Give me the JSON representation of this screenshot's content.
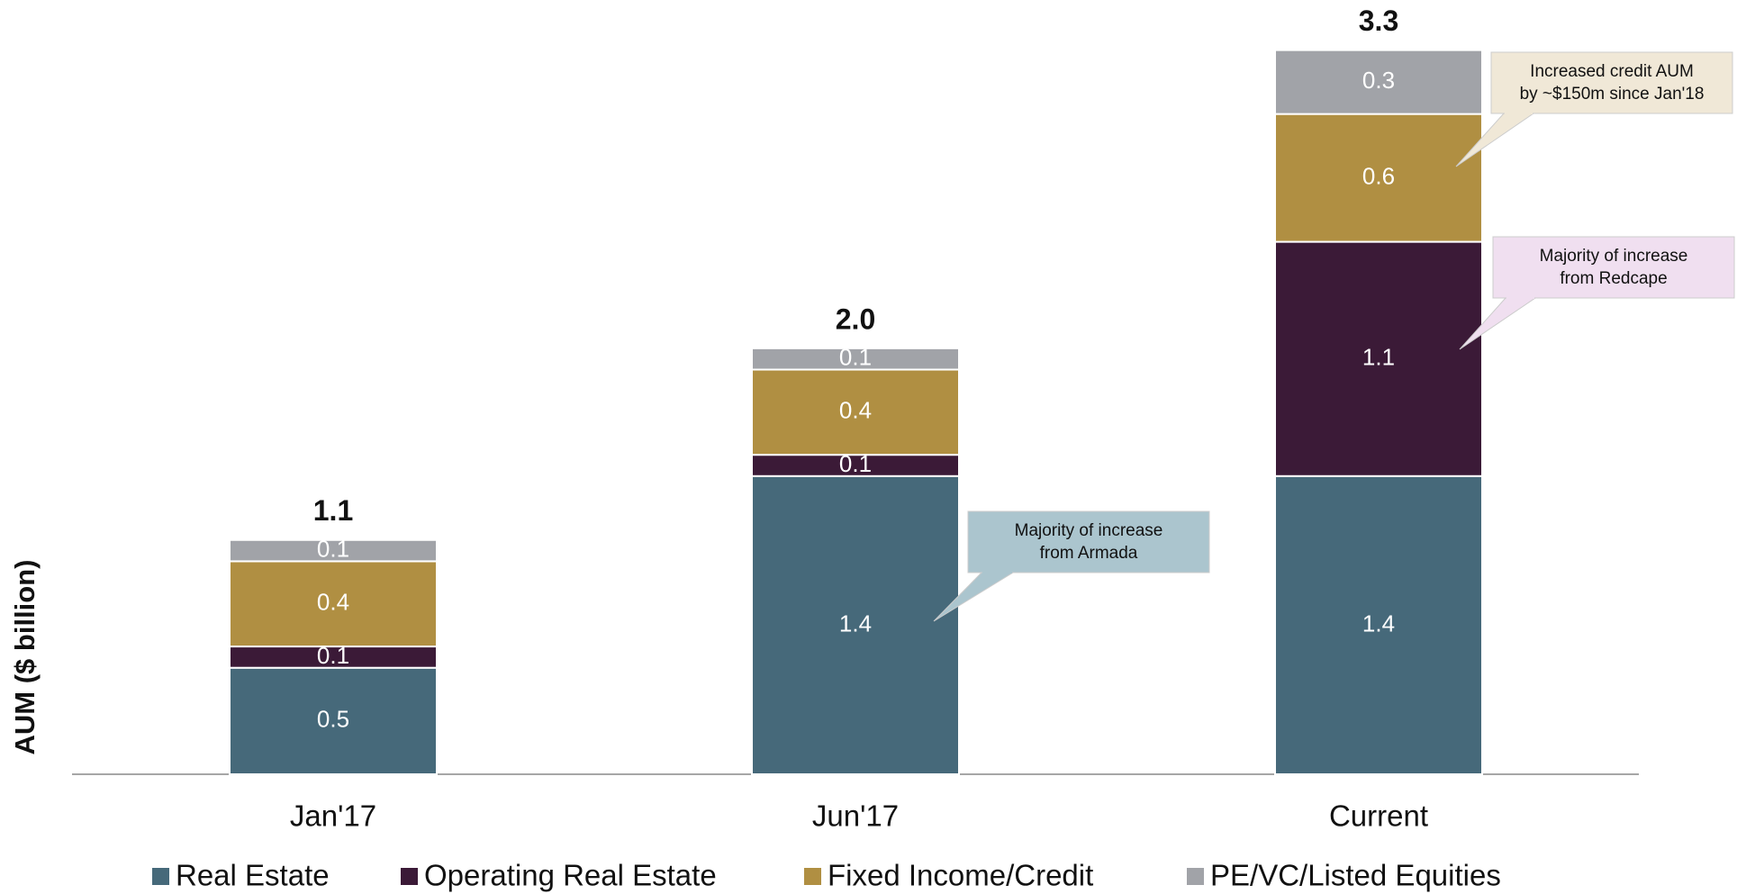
{
  "chart_data": {
    "type": "stacked_bar",
    "ylabel": "AUM ($ billion)",
    "categories": [
      "Jan'17",
      "Jun'17",
      "Current"
    ],
    "series": [
      {
        "name": "Real Estate",
        "color": "#46697a",
        "values": [
          0.5,
          1.4,
          1.4
        ]
      },
      {
        "name": "Operating Real Estate",
        "color": "#3b1a37",
        "values": [
          0.1,
          0.1,
          1.1
        ]
      },
      {
        "name": "Fixed Income/Credit",
        "color": "#b08f42",
        "values": [
          0.4,
          0.4,
          0.6
        ]
      },
      {
        "name": "PE/VC/Listed Equities",
        "color": "#a1a3a8",
        "values": [
          0.1,
          0.1,
          0.3
        ]
      }
    ],
    "totals": {
      "values": [
        1.1,
        2.0,
        3.3
      ],
      "value_labels": [
        "1.1",
        "2.0",
        "3.3"
      ]
    },
    "ylim": [
      0,
      3.5
    ],
    "annotations": [
      {
        "lines": [
          "Majority of increase",
          "from Armada"
        ],
        "color": "#abc5ce"
      },
      {
        "lines": [
          "Majority of increase",
          "from Redcape"
        ],
        "color": "#f0dff0"
      },
      {
        "lines": [
          "Increased credit AUM",
          "by ~$150m since Jan'18"
        ],
        "color": "#f0e8d7"
      }
    ]
  }
}
